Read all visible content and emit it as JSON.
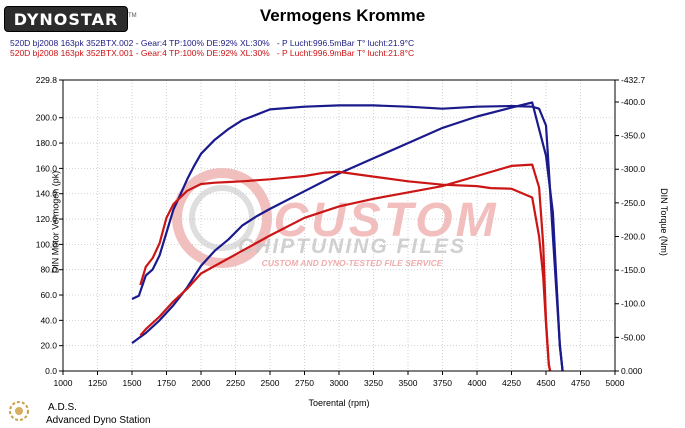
{
  "header": {
    "logo_text": "DYNOSTAR",
    "logo_mark": "TM",
    "title": "Vermogens Kromme"
  },
  "legend": {
    "run1": "520D bj2008 163pk 352BTX.002 - Gear:4 TP:100% DE:92% XL:30%   - P Lucht:996.5mBar T° lucht:21.9°C",
    "run2": "520D bj2008 163pk 352BTX.001 - Gear:4 TP:100% DE:92% XL:30%   - P Lucht:996.9mBar T° lucht:21.8°C"
  },
  "watermark": {
    "line1": "CUSTOM",
    "line2": "CHIPTUNING FILES",
    "line3": "CUSTOM AND DYNO-TESTED FILE SERVICE"
  },
  "footer": {
    "name": "A.D.S.",
    "subtitle": "Advanced Dyno Station"
  },
  "colors": {
    "blue": "#1a1a8c",
    "red": "#cc1515",
    "watermark_red": "#e88a8a",
    "watermark_grey": "#c8c8c8"
  },
  "chart_data": {
    "type": "line",
    "title": "Vermogens Kromme",
    "xlabel": "Toerental (rpm)",
    "ylabel": "DIN Motor Vermogen (pk)",
    "y2label": "DIN Torque (Nm)",
    "xlim": [
      1000,
      5000
    ],
    "ylim": [
      0,
      229.8
    ],
    "y2lim": [
      0,
      432.7
    ],
    "x_ticks": [
      "1000",
      "1250",
      "1500",
      "1750",
      "2000",
      "2250",
      "2500",
      "2750",
      "3000",
      "3250",
      "3500",
      "3750",
      "4000",
      "4250",
      "4500",
      "4750",
      "5000"
    ],
    "y_ticks": [
      "0.0",
      "20.0",
      "40.0",
      "60.0",
      "80.0",
      "100.0",
      "120.0",
      "140.0",
      "160.0",
      "180.0",
      "200.0",
      "229.8"
    ],
    "y2_ticks": [
      "0.000",
      "-50.00",
      "-100.0",
      "-150.0",
      "-200.0",
      "-250.0",
      "-300.0",
      "-350.0",
      "-400.0",
      "-432.7"
    ],
    "grid": true,
    "series": [
      {
        "run": "352BTX.002",
        "kind": "torque",
        "axis": "right",
        "color": "blue",
        "x": [
          1500,
          1550,
          1600,
          1650,
          1700,
          1750,
          1800,
          1850,
          1900,
          1950,
          2000,
          2100,
          2200,
          2300,
          2400,
          2500,
          2750,
          3000,
          3250,
          3500,
          3750,
          4000,
          4250,
          4400,
          4450,
          4500,
          4520,
          4550,
          4600,
          4620
        ],
        "y": [
          107,
          112,
          142,
          151,
          172,
          206,
          240,
          262,
          285,
          305,
          323,
          344,
          360,
          373,
          381,
          389,
          393,
          395,
          395,
          393,
          390,
          393,
          394,
          393,
          390,
          365,
          300,
          200,
          40,
          0
        ]
      },
      {
        "run": "352BTX.002",
        "kind": "power",
        "axis": "left",
        "color": "blue",
        "x": [
          1500,
          1600,
          1700,
          1800,
          1900,
          2000,
          2100,
          2200,
          2300,
          2400,
          2500,
          2750,
          3000,
          3250,
          3500,
          3750,
          4000,
          4250,
          4400,
          4500,
          4550,
          4600,
          4620
        ],
        "y": [
          22,
          30,
          40,
          52,
          66,
          83,
          95,
          104,
          115,
          122,
          128,
          142,
          156,
          168,
          180,
          192,
          201,
          208,
          212,
          170,
          125,
          20,
          0
        ]
      },
      {
        "run": "352BTX.001",
        "kind": "torque",
        "axis": "right",
        "color": "red",
        "x": [
          1560,
          1600,
          1650,
          1700,
          1750,
          1800,
          1900,
          2000,
          2100,
          2200,
          2300,
          2500,
          2750,
          2900,
          3000,
          3250,
          3500,
          3750,
          4000,
          4100,
          4250,
          4400,
          4450,
          4480,
          4500,
          4520,
          4530
        ],
        "y": [
          128,
          155,
          168,
          190,
          228,
          248,
          268,
          278,
          280,
          281,
          282,
          285,
          290,
          295,
          296,
          289,
          282,
          277,
          275,
          272,
          271,
          258,
          200,
          140,
          70,
          10,
          0
        ]
      },
      {
        "run": "352BTX.001",
        "kind": "power",
        "axis": "left",
        "color": "red",
        "x": [
          1560,
          1600,
          1700,
          1800,
          1900,
          2000,
          2250,
          2500,
          2750,
          3000,
          3250,
          3500,
          3750,
          4000,
          4250,
          4400,
          4450,
          4480,
          4500,
          4520,
          4530
        ],
        "y": [
          28,
          33,
          43,
          55,
          65,
          77,
          92,
          107,
          121,
          130,
          136,
          141,
          146,
          154,
          162,
          163,
          145,
          100,
          40,
          5,
          0
        ]
      }
    ]
  }
}
